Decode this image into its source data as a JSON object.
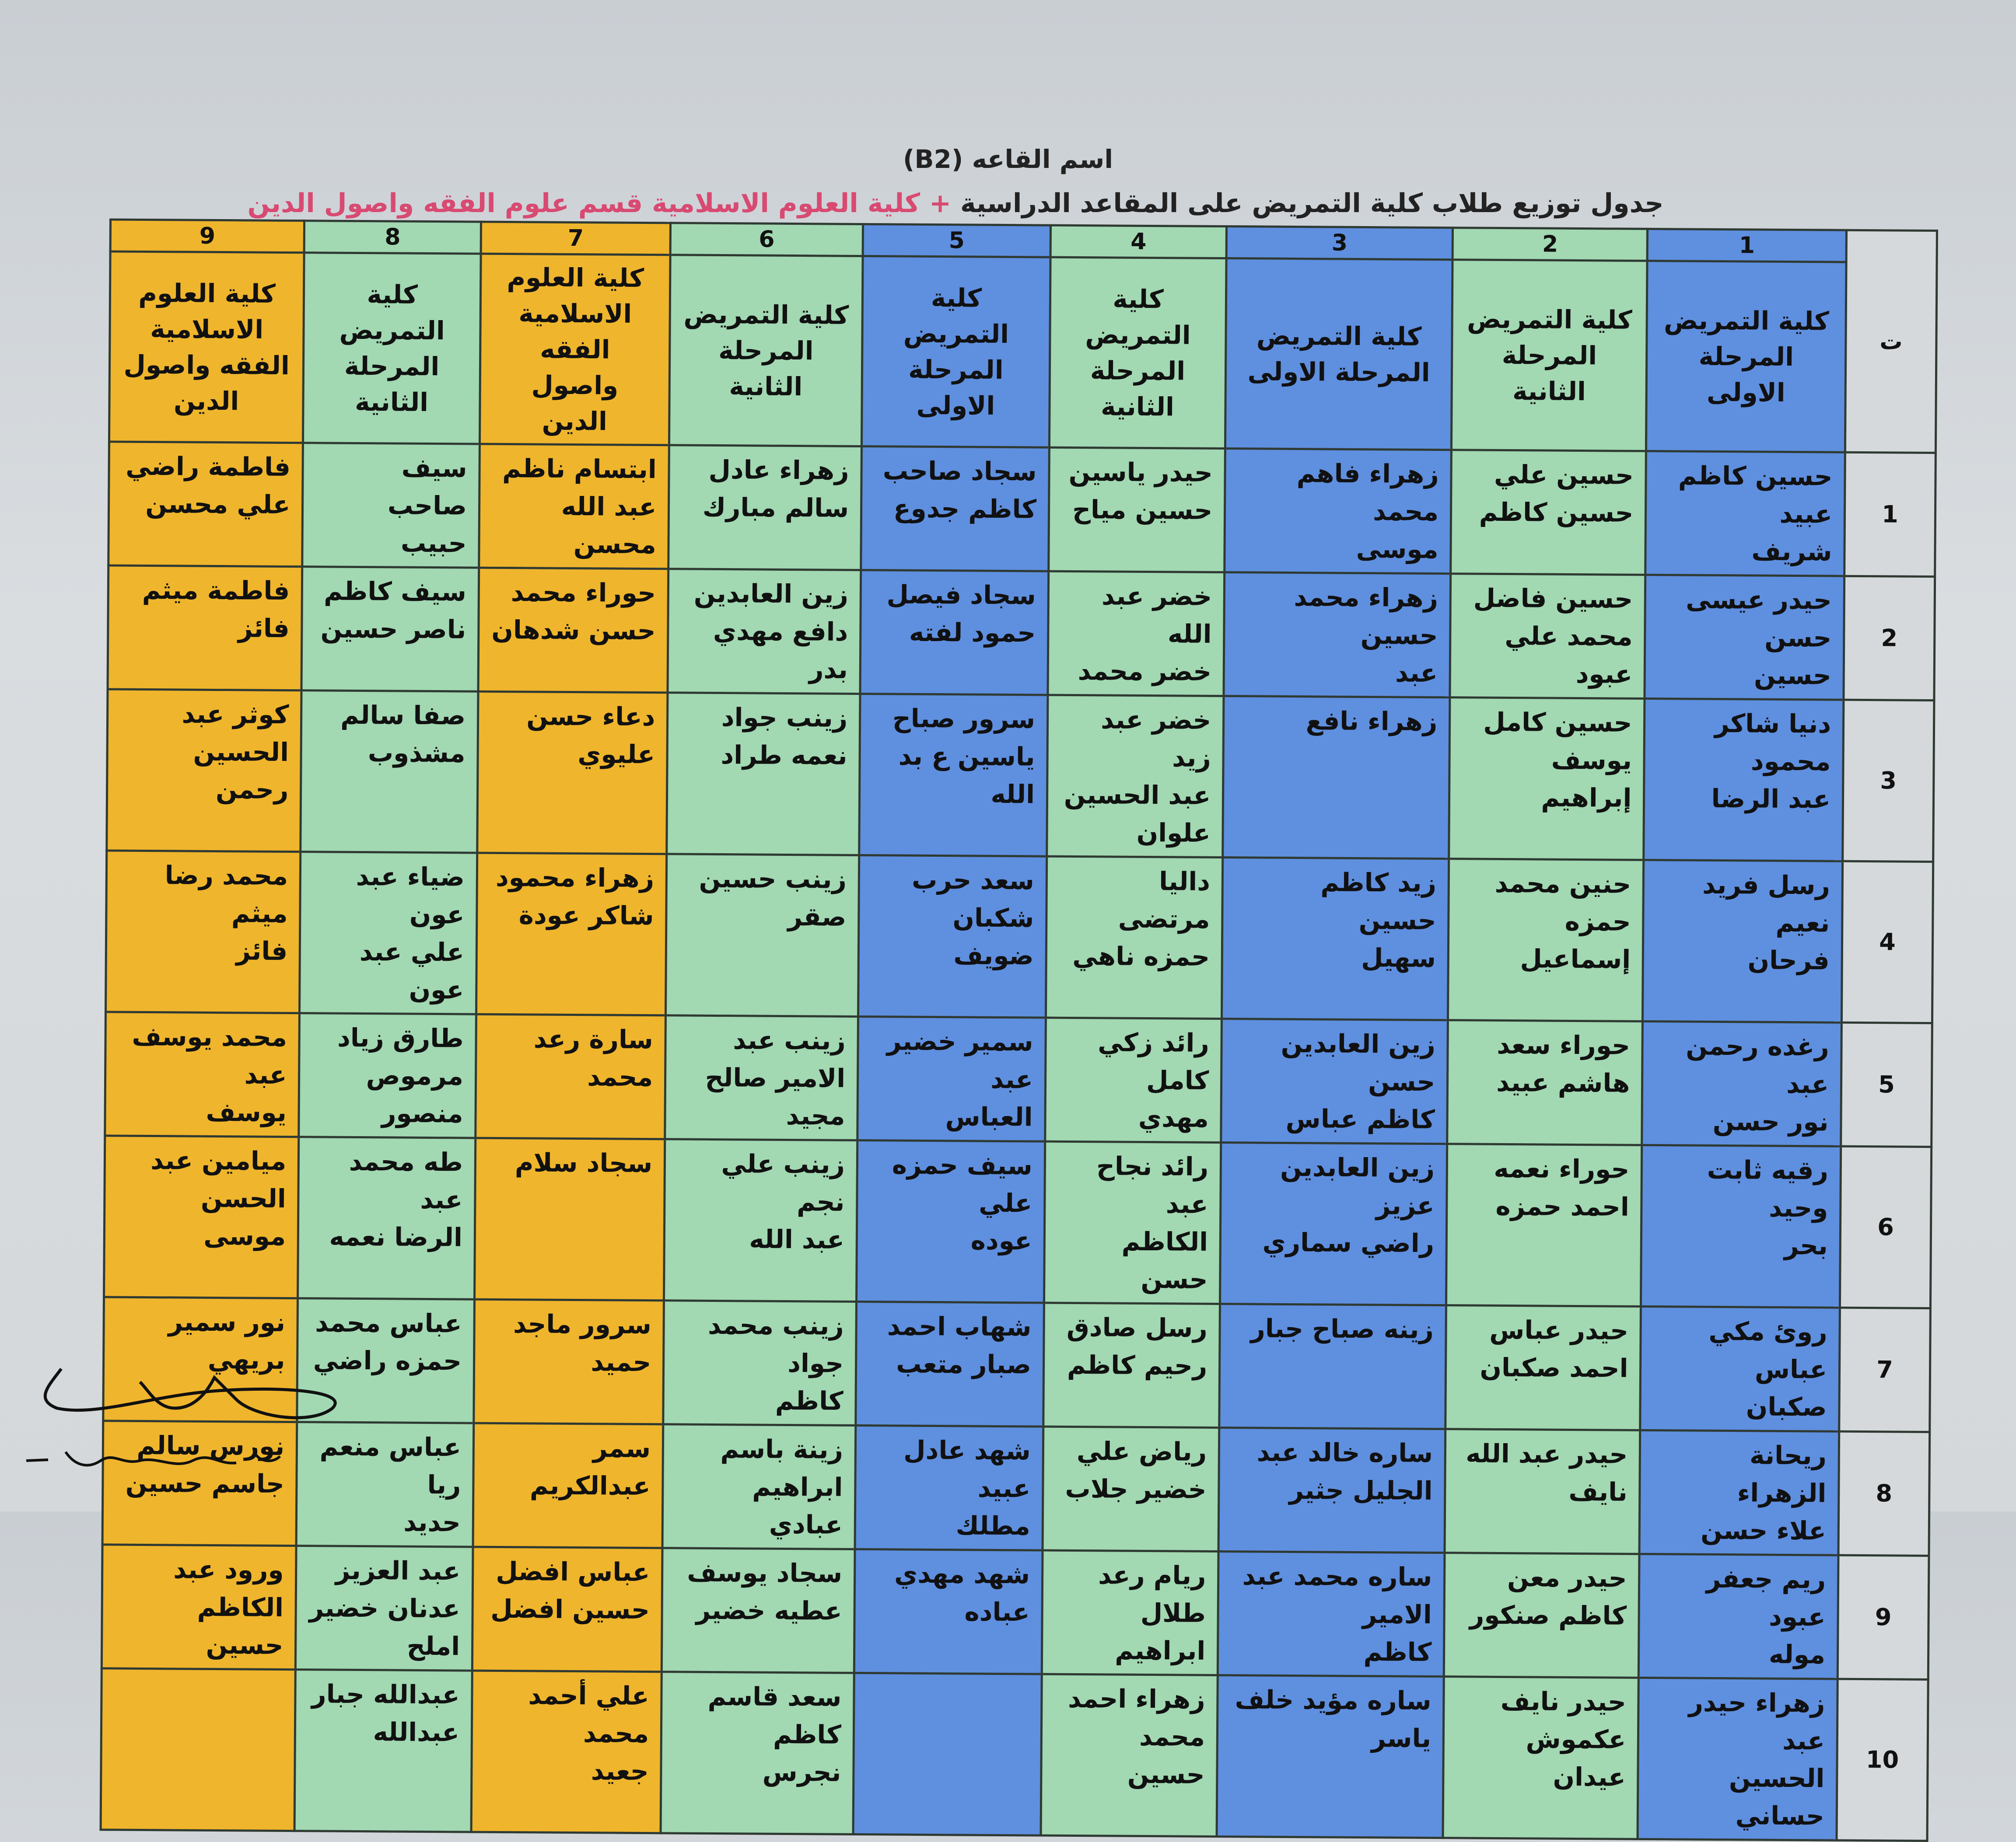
{
  "header": {
    "hall_name": "اسم القاعه (B2)",
    "subtitle_main": "جدول توزيع طلاب كلية التمريض على المقاعد الدراسية",
    "subtitle_plus": " + ",
    "subtitle_highlight": "كلية العلوم الاسلامية قسم علوم الفقه واصول الدين",
    "highlight_color": "#d84a72"
  },
  "table": {
    "index_header": "ت",
    "column_numbers": [
      "1",
      "2",
      "3",
      "4",
      "5",
      "6",
      "7",
      "8",
      "9"
    ],
    "column_colors": [
      "#5f8fdf",
      "#a2d8b2",
      "#5f8fdf",
      "#a2d8b2",
      "#5f8fdf",
      "#a2d8b2",
      "#efb52c",
      "#a2d8b2",
      "#efb52c"
    ],
    "column_headers": [
      "كلية التمريض\nالمرحلة الاولى",
      "كلية التمريض\nالمرحلة الثانية",
      "كلية التمريض\nالمرحلة الاولى",
      "كلية التمريض\nالمرحلة الثانية",
      "كلية التمريض\nالمرحلة الاولى",
      "كلية التمريض\nالمرحلة الثانية",
      "كلية العلوم\nالاسلامية\nالفقه واصول\nالدين",
      "كلية التمريض\nالمرحلة الثانية",
      "كلية العلوم\nالاسلامية\nالفقه واصول\nالدين"
    ],
    "rows": [
      {
        "index": "1",
        "cells": [
          "حسين كاظم عبيد\nشريف",
          "حسين علي\nحسين كاظم",
          "زهراء فاهم محمد\nموسى",
          "حيدر ياسين\nحسين مياح",
          "سجاد صاحب\nكاظم جدوع",
          "زهراء عادل\nسالم مبارك",
          "ابتسام ناظم\nعبد الله محسن",
          "سيف صاحب\nحبيب",
          "فاطمة راضي\nعلي محسن"
        ]
      },
      {
        "index": "2",
        "cells": [
          "حيدر عيسى حسن\nحسين",
          "حسين فاضل\nمحمد علي عبود",
          "زهراء محمد حسين\nعبد",
          "خضر عبد الله\nخضر محمد",
          "سجاد فيصل\nحمود لفته",
          "زين العابدين\nدافع مهدي بدر",
          "حوراء محمد\nحسن شدهان",
          "سيف كاظم\nناصر حسين",
          "فاطمة ميثم فائز"
        ]
      },
      {
        "index": "3",
        "cells": [
          "دنيا شاكر محمود\nعبد الرضا",
          "حسين كامل\nيوسف إبراهيم",
          "زهراء نافع",
          "خضر عبد زيد\nعبد الحسين\nعلوان",
          "سرور صباح\nياسين ع بد الله",
          "زينب جواد\nنعمه طراد",
          "دعاء حسن\nعليوي",
          "صفا سالم\nمشذوب",
          "كوثر عبد\nالحسين رحمن"
        ]
      },
      {
        "index": "4",
        "cells": [
          "رسل فريد نعيم\nفرحان",
          "حنين محمد حمزه\nإسماعيل",
          "زيد كاظم حسين\nسهيل",
          "داليا مرتضى\nحمزه ناهي",
          "سعد حرب\nشكبان ضويف",
          "زينب حسين\nصقر",
          "زهراء محمود\nشاكر عودة",
          "ضياء عبد عون\nعلي عبد عون",
          "محمد رضا ميثم\nفائز"
        ]
      },
      {
        "index": "5",
        "cells": [
          "رغده رحمن عبد\nنور حسن",
          "حوراء سعد\nهاشم عبيد",
          "زين العابدين حسن\nكاظم عباس",
          "رائد زكي كامل\nمهدي",
          "سمير خضير عبد\nالعباس",
          "زينب عبد\nالامير صالح\nمجيد",
          "سارة رعد محمد",
          "طارق زياد\nمرموص\nمنصور",
          "محمد يوسف عبد\nيوسف"
        ]
      },
      {
        "index": "6",
        "cells": [
          "رقيه ثابت وحيد\nبحر",
          "حوراء نعمه\nاحمد حمزه",
          "زين العابدين عزيز\nراضي سماري",
          "رائد نجاح عبد\nالكاظم حسن",
          "سيف حمزه علي\nعوده",
          "زينب علي نجم\nعبد الله",
          "سجاد سلام",
          "طه محمد عبد\nالرضا نعمه",
          "ميامين عبد\nالحسن موسى"
        ]
      },
      {
        "index": "7",
        "cells": [
          "روئ مكي عباس\nصكبان",
          "حيدر عباس\nاحمد صكبان",
          "زينه صباح جبار",
          "رسل صادق\nرحيم كاظم",
          "شهاب احمد\nصبار متعب",
          "زينب محمد جواد\nكاظم",
          "سرور ماجد\nحميد",
          "عباس محمد\nحمزه راضي",
          "نور سمير\nبريهي"
        ]
      },
      {
        "index": "8",
        "cells": [
          "ريحانة الزهراء\nعلاء حسن",
          "حيدر عبد الله\nنايف",
          "ساره خالد عبد\nالجليل جثير",
          "رياض علي\nخضير جلاب",
          "شهد عادل عبيد\nمطلك",
          "زينة باسم\nابراهيم عبادي",
          "سمر عبدالكريم",
          "عباس منعم ريا\nحديد",
          "نورس سالم\nجاسم حسين"
        ]
      },
      {
        "index": "9",
        "cells": [
          "ريم جعفر عبود\nموله",
          "حيدر معن\nكاظم صنكور",
          "ساره محمد عبد الامير\nكاظم",
          "ريام رعد طلال\nابراهيم",
          "شهد مهدي\nعباده",
          "سجاد يوسف\nعطيه خضير",
          "عباس افضل\nحسين افضل",
          "عبد العزيز\nعدنان خضير\nاملح",
          "ورود عبد\nالكاظم حسين"
        ]
      },
      {
        "index": "10",
        "cells": [
          "زهراء حيدر عبد\nالحسين حساني",
          "حيدر نايف\nعكموش\nعيدان",
          "ساره مؤيد خلف\nياسر",
          "زهراء احمد\nمحمد حسين",
          "",
          "سعد قاسم كاظم\nنجرس",
          "علي أحمد محمد\nجعيد",
          "عبدالله جبار\nعبدالله",
          ""
        ]
      }
    ]
  },
  "signature": {
    "type": "handwritten-signature"
  }
}
